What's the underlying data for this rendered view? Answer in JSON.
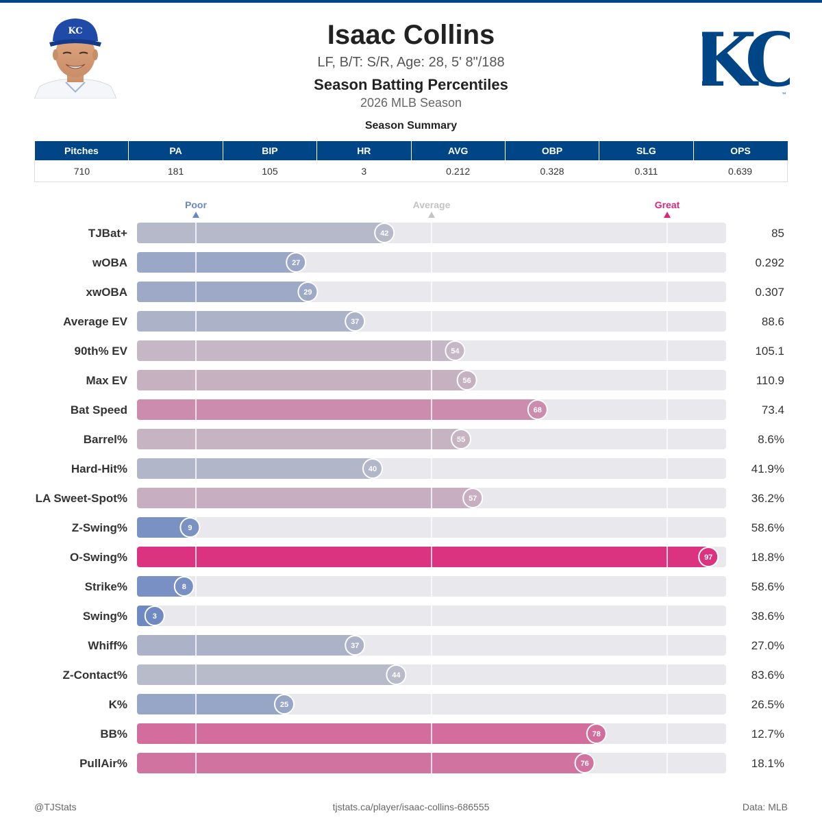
{
  "header": {
    "player_name": "Isaac Collins",
    "player_info": "LF, B/T: S/R, Age: 28, 5' 8\"/188",
    "title": "Season Batting Percentiles",
    "subtitle": "2026 MLB Season",
    "logo_text": "KC",
    "cap_logo_text": "KC"
  },
  "summary": {
    "title": "Season Summary",
    "columns": [
      "Pitches",
      "PA",
      "BIP",
      "HR",
      "AVG",
      "OBP",
      "SLG",
      "OPS"
    ],
    "values": [
      "710",
      "181",
      "105",
      "3",
      "0.212",
      "0.328",
      "0.311",
      "0.639"
    ]
  },
  "chart_data": {
    "type": "bar",
    "orientation": "horizontal",
    "scale_labels": [
      "Poor",
      "Average",
      "Great"
    ],
    "scale_label_colors": [
      "#6a86c3",
      "#c3c3c3",
      "#d9267a"
    ],
    "xlim": [
      0,
      100
    ],
    "reference_percentiles": [
      10,
      50,
      90
    ],
    "categories": [
      "TJBat+",
      "wOBA",
      "xwOBA",
      "Average EV",
      "90th% EV",
      "Max EV",
      "Bat Speed",
      "Barrel%",
      "Hard-Hit%",
      "LA Sweet-Spot%",
      "Z-Swing%",
      "O-Swing%",
      "Strike%",
      "Swing%",
      "Whiff%",
      "Z-Contact%",
      "K%",
      "BB%",
      "PullAir%"
    ],
    "percentiles": [
      42,
      27,
      29,
      37,
      54,
      56,
      68,
      55,
      40,
      57,
      9,
      97,
      8,
      3,
      37,
      44,
      25,
      78,
      76
    ],
    "stat_values": [
      "85",
      "0.292",
      "0.307",
      "88.6",
      "105.1",
      "110.9",
      "73.4",
      "8.6%",
      "41.9%",
      "36.2%",
      "58.6%",
      "18.8%",
      "58.6%",
      "38.6%",
      "27.0%",
      "83.6%",
      "26.5%",
      "12.7%",
      "18.1%"
    ],
    "colors": {
      "poor": "#6a86c3",
      "average": "#c3c3cb",
      "great": "#dd2a7b",
      "track": "#e8e8ed",
      "brand": "#004687"
    }
  },
  "footer": {
    "left": "@TJStats",
    "center": "tjstats.ca/player/isaac-collins-686555",
    "right": "Data: MLB"
  }
}
